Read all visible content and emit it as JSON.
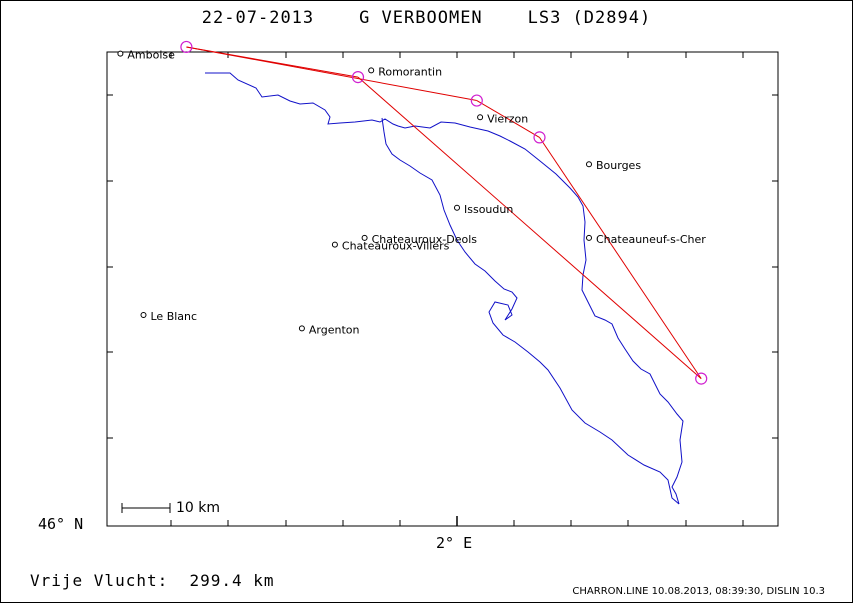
{
  "header": {
    "title": "22-07-2013    G VERBOOMEN    LS3 (D2894)"
  },
  "axes": {
    "lat_label": "46° N",
    "lon_label": "2° E"
  },
  "scale": {
    "label": "10 km"
  },
  "summary": {
    "distance_text": "Vrije Vlucht:  299.4 km"
  },
  "footer": {
    "text": "CHARRON.LINE 10.08.2013, 08:39:30, DISLIN 10.3"
  },
  "colors": {
    "track": "#1010c8",
    "task": "#e00000",
    "turnpoint": "#d020d0",
    "axis": "#000000"
  },
  "chart_data": {
    "type": "map",
    "title": "22-07-2013    G VERBOOMEN    LS3 (D2894)",
    "xlabel": "2° E",
    "ylabel": "46° N",
    "cities": [
      {
        "name": "Amboise",
        "lon": 0.98,
        "lat": 47.41
      },
      {
        "name": "Romorantin",
        "lon": 1.74,
        "lat": 47.36
      },
      {
        "name": "Vierzon",
        "lon": 2.07,
        "lat": 47.22
      },
      {
        "name": "Bourges",
        "lon": 2.4,
        "lat": 47.08
      },
      {
        "name": "Issoudun",
        "lon": 2.0,
        "lat": 46.95
      },
      {
        "name": "Chateauneuf-s-Cher",
        "lon": 2.4,
        "lat": 46.86
      },
      {
        "name": "Chateauroux-Deols",
        "lon": 1.72,
        "lat": 46.86
      },
      {
        "name": "Chateauroux-Villers",
        "lon": 1.63,
        "lat": 46.84
      },
      {
        "name": "Le Blanc",
        "lon": 1.05,
        "lat": 46.63
      },
      {
        "name": "Argenton",
        "lon": 1.53,
        "lat": 46.59
      }
    ],
    "turnpoints": [
      {
        "lon": 1.18,
        "lat": 47.43
      },
      {
        "lon": 1.7,
        "lat": 47.34
      },
      {
        "lon": 2.06,
        "lat": 47.27
      },
      {
        "lon": 2.25,
        "lat": 47.16
      },
      {
        "lon": 2.74,
        "lat": 46.44
      }
    ],
    "task_legs": [
      [
        1.18,
        47.43,
        2.06,
        47.27
      ],
      [
        2.06,
        47.27,
        2.25,
        47.16
      ],
      [
        2.25,
        47.16,
        2.74,
        46.44
      ],
      [
        2.74,
        46.44,
        1.7,
        47.34
      ],
      [
        1.7,
        47.34,
        1.18,
        47.43
      ]
    ]
  }
}
